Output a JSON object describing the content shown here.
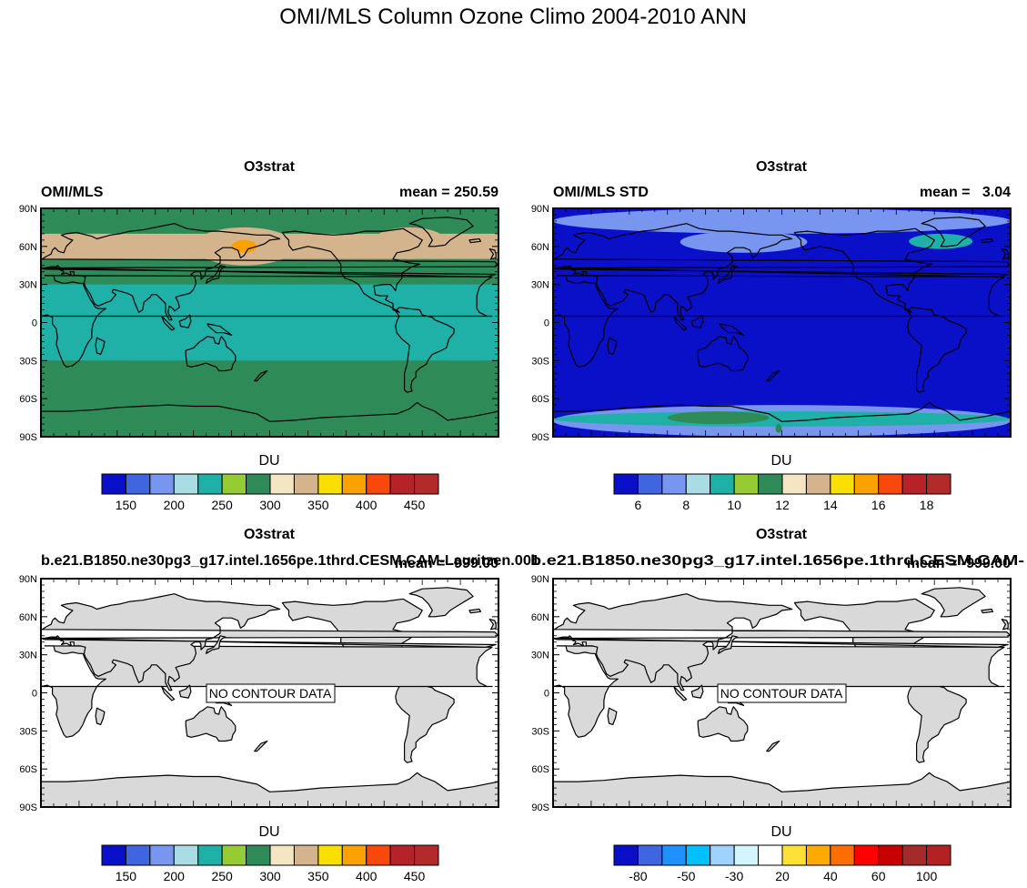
{
  "figure": {
    "title": "OMI/MLS Column Ozone Climo 2004-2010 ANN"
  },
  "lat_ticks": [
    "90N",
    "60N",
    "30N",
    "0",
    "30S",
    "60S",
    "90S"
  ],
  "colors": {
    "land": "#d9d9d9",
    "coast": "#000000",
    "ozone_levels": [
      "#0a0fc8",
      "#3f65e1",
      "#7896ef",
      "#a9dde3",
      "#1fb0a7",
      "#96cb34",
      "#2e8b57",
      "#f5e6c3",
      "#d4b48c",
      "#fae000",
      "#fba200",
      "#f8480b",
      "#b62227",
      "#b22a2a"
    ],
    "std_levels": [
      "#0a0fc8",
      "#3f65e1",
      "#7896ef",
      "#a9dde3",
      "#1fb0a7",
      "#96cb34",
      "#2e8b57",
      "#f5e6c3",
      "#d4b48c",
      "#fae000",
      "#fba200",
      "#f8480b",
      "#b62227",
      "#b22a2a"
    ],
    "diff_levels": [
      "#0a0fc8",
      "#3f65e1",
      "#1e90ff",
      "#00bfff",
      "#a0d2ff",
      "#d2f5ff",
      "#ffffff",
      "#ffe135",
      "#ffaa00",
      "#ff6e00",
      "#ff0000",
      "#c80000",
      "#a52a2a",
      "#b22222"
    ]
  },
  "panels": [
    {
      "title": "O3strat",
      "left_label": "OMI/MLS",
      "right_label": "mean = 250.59",
      "colorbar_title": "DU",
      "colorbar_labels": [
        "150",
        "200",
        "250",
        "300",
        "350",
        "400",
        "450"
      ],
      "note": ""
    },
    {
      "title": "O3strat",
      "left_label": "OMI/MLS STD",
      "right_label": "mean =   3.04",
      "colorbar_title": "DU",
      "colorbar_labels": [
        "6",
        "8",
        "10",
        "12",
        "14",
        "16",
        "18"
      ],
      "note": ""
    },
    {
      "title": "O3strat",
      "left_label": "b.e21.B1850.ne30pg3_g17.intel.1656pe.1thrd.CESM.CAM-Lauritzen.001",
      "right_label": "mean = -999.00",
      "colorbar_title": "DU",
      "colorbar_labels": [
        "150",
        "200",
        "250",
        "300",
        "350",
        "400",
        "450"
      ],
      "note": "NO CONTOUR DATA"
    },
    {
      "title": "O3strat",
      "left_label": "b.e21.B1850.ne30pg3_g17.intel.1656pe.1thrd.CESM.CAM-",
      "right_label": "mean = -999.00",
      "colorbar_title": "DU",
      "colorbar_labels": [
        "-80",
        "-50",
        "-30",
        "20",
        "40",
        "60",
        "100"
      ],
      "note": "NO CONTOUR DATA"
    }
  ],
  "chart_data": [
    {
      "type": "heatmap",
      "title": "O3strat",
      "subtitle_left": "OMI/MLS",
      "subtitle_right": "mean = 250.59",
      "units": "DU",
      "x": "longitude 0-360",
      "ylim": [
        -90,
        90
      ],
      "levels": [
        150,
        200,
        250,
        300,
        350,
        400,
        450
      ],
      "zonal_bands": [
        {
          "lat": [
            70,
            90
          ],
          "value": 290
        },
        {
          "lat": [
            50,
            70
          ],
          "value": 300
        },
        {
          "lat": [
            40,
            50
          ],
          "value": 270
        },
        {
          "lat": [
            30,
            40
          ],
          "value": 255
        },
        {
          "lat": [
            15,
            30
          ],
          "value": 240
        },
        {
          "lat": [
            -5,
            15
          ],
          "value": 225
        },
        {
          "lat": [
            -30,
            -5
          ],
          "value": 240
        },
        {
          "lat": [
            -40,
            -30
          ],
          "value": 255
        },
        {
          "lat": [
            -60,
            -40
          ],
          "value": 270
        },
        {
          "lat": [
            -70,
            -60
          ],
          "value": 290
        },
        {
          "lat": [
            -80,
            -70
          ],
          "value": 270
        },
        {
          "lat": [
            -90,
            -80
          ],
          "value": 255
        }
      ],
      "maxima": [
        {
          "lon": [
            120,
            200
          ],
          "lat": [
            45,
            75
          ],
          "value": 320
        },
        {
          "lon": [
            135,
            180
          ],
          "lat": [
            50,
            70
          ],
          "value": 340
        },
        {
          "lon": [
            150,
            170
          ],
          "lat": [
            55,
            65
          ],
          "value": 360
        },
        {
          "lon": [
            260,
            320
          ],
          "lat": [
            50,
            75
          ],
          "value": 320
        },
        {
          "lon": [
            268,
            300
          ],
          "lat": [
            55,
            68
          ],
          "value": 335
        }
      ]
    },
    {
      "type": "heatmap",
      "title": "O3strat",
      "subtitle_left": "OMI/MLS STD",
      "subtitle_right": "mean =   3.04",
      "units": "DU",
      "x": "longitude 0-360",
      "ylim": [
        -90,
        90
      ],
      "levels": [
        6,
        8,
        10,
        12,
        14,
        16,
        18
      ],
      "background_value": 3,
      "features": [
        {
          "lon": [
            0,
            360
          ],
          "lat": [
            70,
            90
          ],
          "value": 6
        },
        {
          "lon": [
            100,
            200
          ],
          "lat": [
            55,
            72
          ],
          "value": 7
        },
        {
          "lon": [
            280,
            330
          ],
          "lat": [
            58,
            70
          ],
          "value": 8
        },
        {
          "lon": [
            0,
            360
          ],
          "lat": [
            -90,
            -65
          ],
          "value": 6
        },
        {
          "lon": [
            0,
            360
          ],
          "lat": [
            -82,
            -70
          ],
          "value": 8
        },
        {
          "lon": [
            90,
            170
          ],
          "lat": [
            -80,
            -70
          ],
          "value": 10
        },
        {
          "lon": [
            175,
            180
          ],
          "lat": [
            -87,
            -80
          ],
          "value": 11
        }
      ]
    },
    {
      "type": "heatmap",
      "title": "O3strat",
      "subtitle_left": "b.e21.B1850.ne30pg3_g17.intel.1656pe.1thrd.CESM.CAM-Lauritzen.001",
      "subtitle_right": "mean = -999.00",
      "units": "DU",
      "ylim": [
        -90,
        90
      ],
      "levels": [
        150,
        200,
        250,
        300,
        350,
        400,
        450
      ],
      "annotation": "NO CONTOUR DATA"
    },
    {
      "type": "heatmap",
      "title": "O3strat",
      "subtitle_left": "b.e21.B1850.ne30pg3_g17.intel.1656pe.1thrd.CESM.CAM-",
      "subtitle_right": "mean = -999.00",
      "units": "DU",
      "ylim": [
        -90,
        90
      ],
      "levels": [
        -80,
        -50,
        -30,
        20,
        40,
        60,
        100
      ],
      "annotation": "NO CONTOUR DATA"
    }
  ]
}
